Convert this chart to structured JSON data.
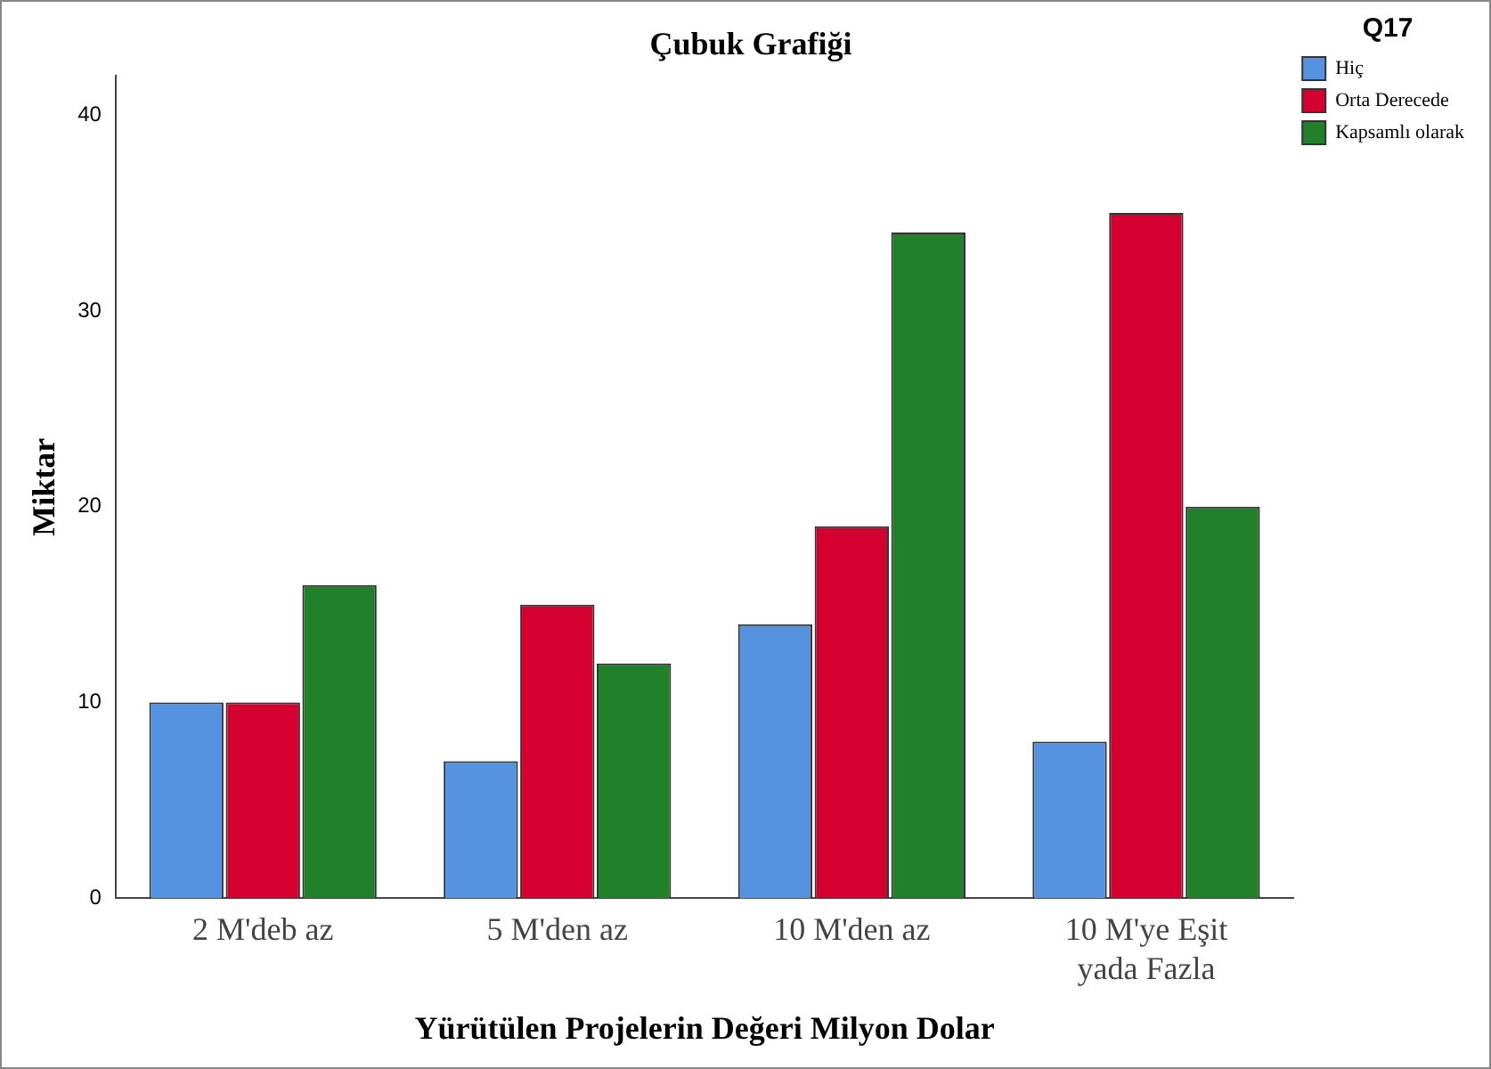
{
  "chart_data": {
    "type": "bar",
    "title": "Çubuk Grafiği",
    "xlabel": "Yürütülen Projelerin Değeri Milyon Dolar",
    "ylabel": "Miktar",
    "legend_title": "Q17",
    "categories": [
      "2 M'deb az",
      "5 M'den az",
      "10 M'den az",
      "10 M'ye Eşit yada Fazla"
    ],
    "series": [
      {
        "name": "Hiç",
        "color": "#5592e0",
        "values": [
          10,
          7,
          14,
          8
        ]
      },
      {
        "name": "Orta Derecede",
        "color": "#d40030",
        "values": [
          10,
          15,
          19,
          35
        ]
      },
      {
        "name": "Kapsamlı olarak",
        "color": "#21812a",
        "values": [
          16,
          12,
          34,
          20
        ]
      }
    ],
    "ylim": [
      0,
      42
    ],
    "yticks": [
      0,
      10,
      20,
      30,
      40
    ],
    "grid": false,
    "legend": "top right"
  }
}
